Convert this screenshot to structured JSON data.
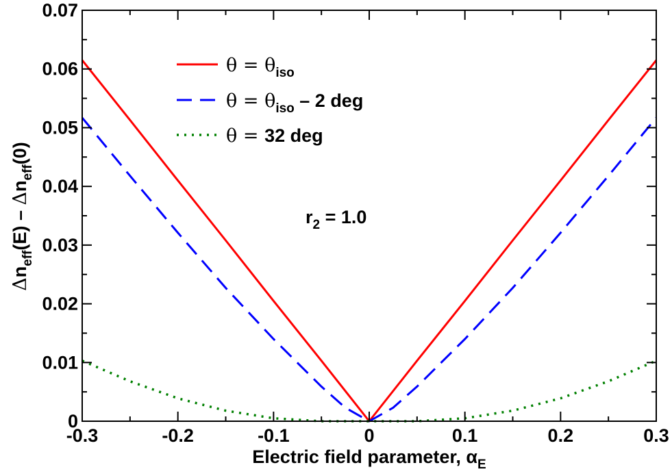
{
  "chart_data": {
    "type": "line",
    "title": "",
    "xlabel": "Electric field parameter, α",
    "xlabel_subscript": "E",
    "ylabel_parts": {
      "delta1": "Δ",
      "n1": "n",
      "sub1": "eff",
      "arg1": "(E) – ",
      "delta2": "Δ",
      "n2": "n",
      "sub2": "eff",
      "arg2": "(0)"
    },
    "xlim": [
      -0.3,
      0.3
    ],
    "ylim": [
      0,
      0.07
    ],
    "xticks": [
      -0.3,
      -0.2,
      -0.1,
      0,
      0.1,
      0.2,
      0.3
    ],
    "xtick_labels": [
      "-0.3",
      "-0.2",
      "-0.1",
      "0",
      "0.1",
      "0.2",
      "0.3"
    ],
    "yticks": [
      0,
      0.01,
      0.02,
      0.03,
      0.04,
      0.05,
      0.06,
      0.07
    ],
    "ytick_labels": [
      "0",
      "0.01",
      "0.02",
      "0.03",
      "0.04",
      "0.05",
      "0.06",
      "0.07"
    ],
    "annotation": {
      "base": "r",
      "sub": "2",
      "rest": " = 1.0"
    },
    "series": [
      {
        "name": "θ = θiso",
        "legend": {
          "theta": "θ",
          "eq": " = ",
          "theta2": "θ",
          "sub": "iso",
          "rest": ""
        },
        "color": "#ff0000",
        "style": "solid",
        "x": [
          -0.3,
          -0.25,
          -0.2,
          -0.15,
          -0.1,
          -0.05,
          0,
          0.05,
          0.1,
          0.15,
          0.2,
          0.25,
          0.3
        ],
        "y": [
          0.0615,
          0.0513,
          0.041,
          0.0308,
          0.0205,
          0.0103,
          0,
          0.0103,
          0.0205,
          0.0308,
          0.041,
          0.0513,
          0.0615
        ]
      },
      {
        "name": "θ = θiso – 2 deg",
        "legend": {
          "theta": "θ",
          "eq": " = ",
          "theta2": "θ",
          "sub": "iso",
          "rest": " – 2 deg"
        },
        "color": "#0000ff",
        "style": "dashed",
        "x": [
          -0.3,
          -0.25,
          -0.2,
          -0.15,
          -0.1,
          -0.05,
          -0.025,
          0,
          0.025,
          0.05,
          0.1,
          0.15,
          0.2,
          0.25,
          0.3
        ],
        "y": [
          0.0517,
          0.0418,
          0.0321,
          0.0227,
          0.014,
          0.0059,
          0.0023,
          0,
          0.0023,
          0.0059,
          0.014,
          0.0227,
          0.0321,
          0.0418,
          0.0517
        ]
      },
      {
        "name": "θ = 32 deg",
        "legend": {
          "theta": "θ",
          "eq": " = ",
          "theta2": "",
          "sub": "",
          "rest": " 32 deg"
        },
        "color": "#008000",
        "style": "dotted",
        "x": [
          -0.3,
          -0.25,
          -0.2,
          -0.15,
          -0.1,
          -0.05,
          0,
          0.05,
          0.1,
          0.15,
          0.2,
          0.25,
          0.3
        ],
        "y": [
          0.0103,
          0.0068,
          0.0039,
          0.0018,
          0.0005,
          0.0,
          0.0,
          0.0,
          0.0005,
          0.0018,
          0.0039,
          0.0068,
          0.0103
        ]
      }
    ]
  }
}
